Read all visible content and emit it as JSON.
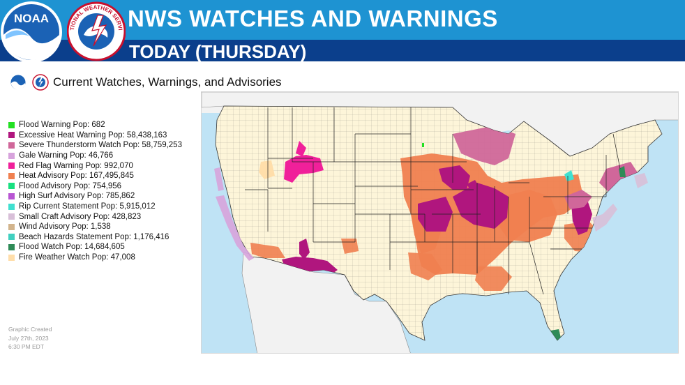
{
  "header": {
    "title": "NWS WATCHES AND WARNINGS",
    "subtitle": "TODAY (THURSDAY)",
    "noaa_logo_text": "NOAA",
    "nws_logo_text": "NATIONAL WEATHER SERVICE"
  },
  "map": {
    "caption": "Current Watches, Warnings, and Advisories"
  },
  "legend": [
    {
      "label": "Flood Warning  Pop: 682",
      "color": "#22e022"
    },
    {
      "label": "Excessive Heat Warning  Pop: 58,438,163",
      "color": "#b0167e"
    },
    {
      "label": "Severe Thunderstorm Watch  Pop: 58,759,253",
      "color": "#d0679a"
    },
    {
      "label": "Gale Warning  Pop: 46,766",
      "color": "#d7a3dc"
    },
    {
      "label": "Red Flag Warning  Pop: 992,070",
      "color": "#f0209a"
    },
    {
      "label": "Heat Advisory  Pop: 167,495,845",
      "color": "#f08050"
    },
    {
      "label": "Flood Advisory  Pop: 754,956",
      "color": "#18e080"
    },
    {
      "label": "High Surf Advisory  Pop: 785,862",
      "color": "#b855d3"
    },
    {
      "label": "Rip Current Statement  Pop: 5,915,012",
      "color": "#40e0d0"
    },
    {
      "label": "Small Craft Advisory  Pop: 428,823",
      "color": "#d8bfd8"
    },
    {
      "label": "Wind Advisory  Pop: 1,538",
      "color": "#d2b48c"
    },
    {
      "label": "Beach Hazards Statement  Pop: 1,176,416",
      "color": "#40d0c0"
    },
    {
      "label": "Flood Watch  Pop: 14,684,605",
      "color": "#2e8b57"
    },
    {
      "label": "Fire Weather Watch  Pop: 47,008",
      "color": "#ffdeaa"
    }
  ],
  "created": {
    "line1": "Graphic Created",
    "line2": "July 27th, 2023",
    "line3": "6:30 PM EDT"
  }
}
